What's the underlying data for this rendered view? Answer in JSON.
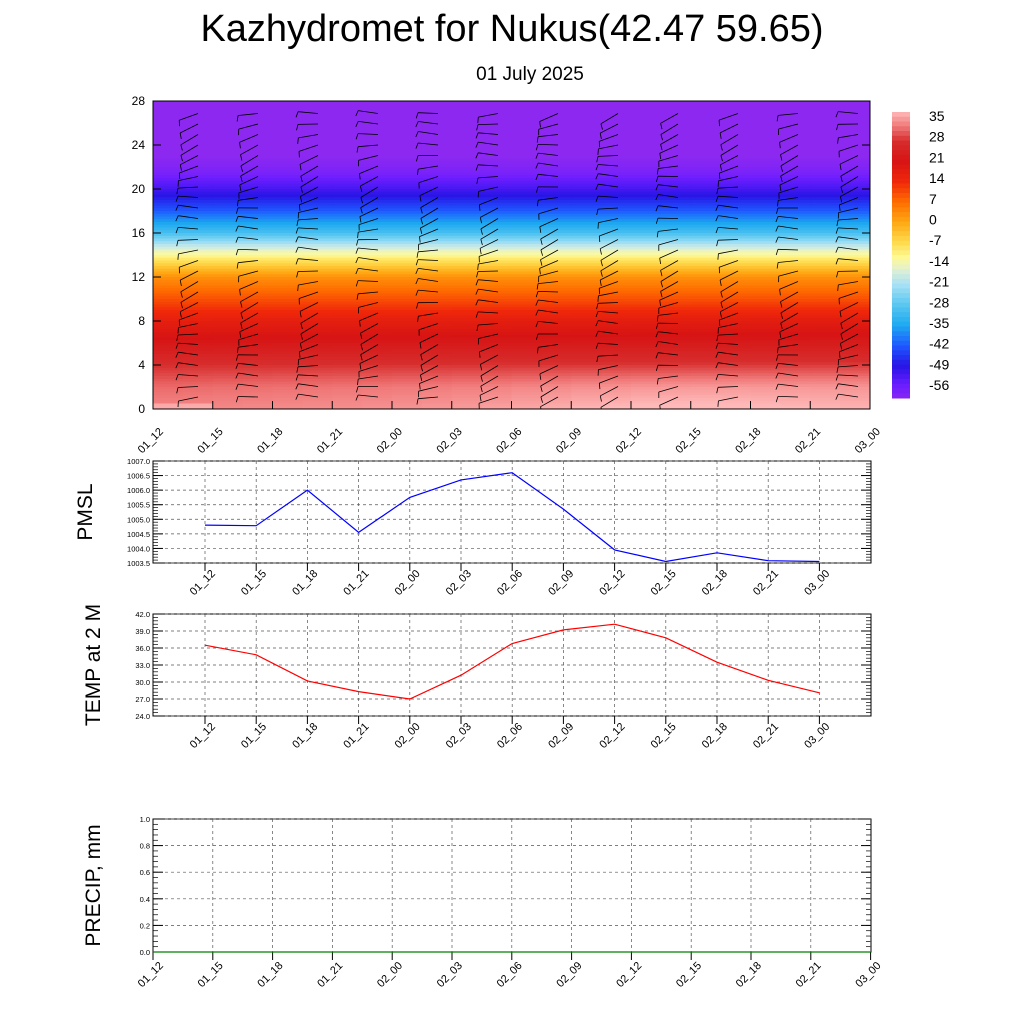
{
  "header": {
    "title": "Kazhydromet for Nukus(42.47 59.65)",
    "subtitle": "01 July 2025"
  },
  "time_labels": [
    "01_12",
    "01_15",
    "01_18",
    "01_21",
    "02_00",
    "02_03",
    "02_06",
    "02_09",
    "02_12",
    "02_15",
    "02_18",
    "02_21",
    "03_00"
  ],
  "chart_data": [
    {
      "type": "heatmap",
      "y_ticks": [
        0,
        4,
        8,
        12,
        16,
        20,
        24,
        28
      ],
      "ylim": [
        0,
        28
      ],
      "colorbar_labels": [
        "35",
        "28",
        "21",
        "14",
        "7",
        "0",
        "-7",
        "-14",
        "-21",
        "-28",
        "-35",
        "-42",
        "-49",
        "-56"
      ],
      "colorbar_range": [
        -60,
        38
      ],
      "temperature_profile": {
        "heights": [
          0,
          2,
          4,
          6,
          8,
          10,
          12,
          13.5,
          14.5,
          16,
          18,
          20,
          21.5,
          23,
          28
        ],
        "values_left": [
          34,
          32,
          28,
          22,
          17,
          10,
          3,
          -8,
          -16,
          -30,
          -42,
          -52,
          -58,
          -61,
          -61
        ],
        "values_right": [
          37,
          35,
          29,
          23,
          18,
          10,
          3,
          -8,
          -16,
          -30,
          -42,
          -52,
          -58,
          -61,
          -61
        ]
      },
      "wind_barbs": "present"
    },
    {
      "type": "line",
      "ylabel": "PMSL",
      "y_ticks": [
        "1003.5",
        "1004.0",
        "1004.5",
        "1005.0",
        "1005.5",
        "1006.0",
        "1006.5",
        "1007.0"
      ],
      "ylim": [
        1003.5,
        1007.0
      ],
      "x": [
        "01_12",
        "01_15",
        "01_18",
        "01_21",
        "02_00",
        "02_03",
        "02_06",
        "02_09",
        "02_12",
        "02_15",
        "02_18",
        "02_21",
        "03_00"
      ],
      "series": [
        {
          "values": [
            1004.8,
            1004.78,
            1006.0,
            1004.55,
            1005.75,
            1006.35,
            1006.6,
            1005.35,
            1003.95,
            1003.55,
            1003.85,
            1003.58,
            1003.55
          ],
          "color": "#0000ff"
        }
      ],
      "grid": true
    },
    {
      "type": "line",
      "ylabel": "TEMP at 2 M",
      "y_ticks": [
        "24.0",
        "27.0",
        "30.0",
        "33.0",
        "36.0",
        "39.0",
        "42.0"
      ],
      "ylim": [
        24.0,
        42.0
      ],
      "x": [
        "01_12",
        "01_15",
        "01_18",
        "01_21",
        "02_00",
        "02_03",
        "02_06",
        "02_09",
        "02_12",
        "02_15",
        "02_18",
        "02_21",
        "03_00"
      ],
      "series": [
        {
          "values": [
            36.5,
            34.8,
            30.2,
            28.3,
            27.0,
            31.2,
            36.8,
            39.2,
            40.2,
            37.8,
            33.5,
            30.3,
            28.1
          ],
          "color": "#ff0000"
        }
      ],
      "grid": true
    },
    {
      "type": "line",
      "ylabel": "PRECIP, mm",
      "y_ticks": [
        "0.0",
        "0.2",
        "0.4",
        "0.6",
        "0.8",
        "1.0"
      ],
      "ylim": [
        0.0,
        1.0
      ],
      "x": [
        "01_12",
        "01_15",
        "01_18",
        "01_21",
        "02_00",
        "02_03",
        "02_06",
        "02_09",
        "02_12",
        "02_15",
        "02_18",
        "02_21",
        "03_00"
      ],
      "series": [
        {
          "values": [
            0,
            0,
            0,
            0,
            0,
            0,
            0,
            0,
            0,
            0,
            0,
            0,
            0
          ],
          "color": "#008000"
        }
      ],
      "grid": true
    }
  ]
}
